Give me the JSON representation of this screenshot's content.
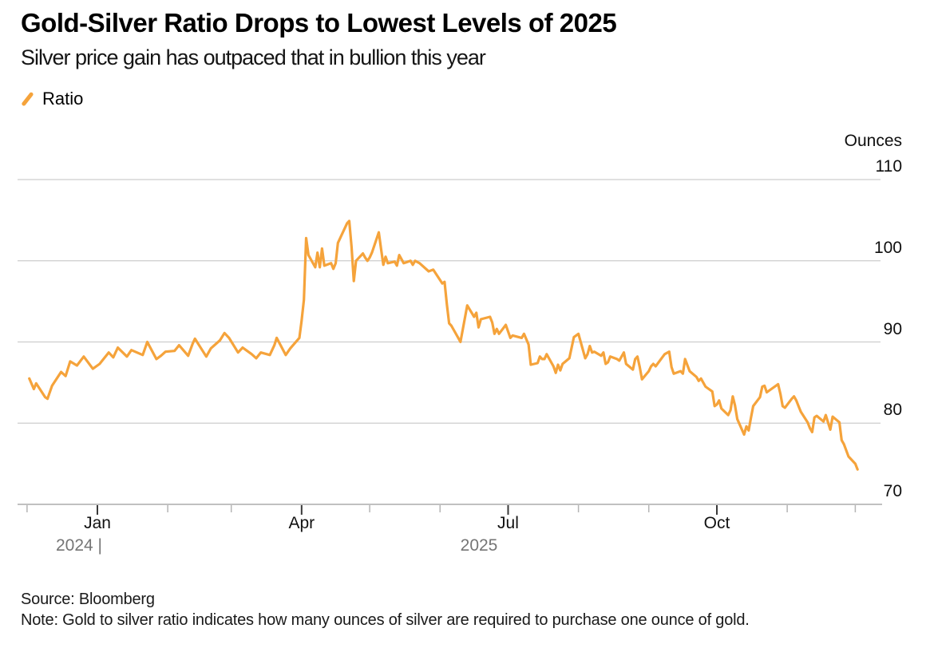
{
  "header": {
    "title": "Gold-Silver Ratio Drops to Lowest Levels of 2025",
    "subtitle": "Silver price gain has outpaced that in bullion this year"
  },
  "legend": {
    "items": [
      {
        "label": "Ratio",
        "marker": "slash-icon",
        "color": "#F5A33B"
      }
    ]
  },
  "footer": {
    "source": "Source: Bloomberg",
    "note": "Note: Gold to silver ratio indicates how many ounces of silver are required to purchase one ounce of gold."
  },
  "colors": {
    "line": "#F5A33B",
    "grid": "#CDCDCD",
    "axis": "#ABABAB",
    "major_tick": "#3A3A3A",
    "minor_tick": "#B5B5B5",
    "year_text": "#757575"
  },
  "chart_data": {
    "type": "line",
    "title": "Gold-Silver Ratio Drops to Lowest Levels of 2025",
    "subtitle": "Silver price gain has outpaced that in bullion this year",
    "unit_label": "Ounces",
    "ylabel": "Ounces",
    "xlabel": "",
    "ylim": [
      70,
      110
    ],
    "y_ticks": [
      110,
      100,
      90,
      80,
      70
    ],
    "grid": "horizontal",
    "legend_position": "top-left",
    "x_major_ticks": [
      {
        "label": "Jan",
        "date": "2025-01-01"
      },
      {
        "label": "Apr",
        "date": "2025-04-01"
      },
      {
        "label": "Jul",
        "date": "2025-07-01"
      },
      {
        "label": "Oct",
        "date": "2025-10-01"
      }
    ],
    "x_minor_tick_dates": [
      "2024-12-01",
      "2025-02-01",
      "2025-03-01",
      "2025-05-01",
      "2025-06-01",
      "2025-08-01",
      "2025-09-01",
      "2025-11-01",
      "2025-12-01"
    ],
    "year_labels": [
      {
        "label": "2024 |"
      },
      {
        "label": "2025"
      }
    ],
    "series": [
      {
        "name": "Ratio",
        "color": "#F5A33B",
        "points": [
          [
            "2024-12-02",
            85.5
          ],
          [
            "2024-12-04",
            84.2
          ],
          [
            "2024-12-05",
            84.9
          ],
          [
            "2024-12-09",
            83.2
          ],
          [
            "2024-12-10",
            83.0
          ],
          [
            "2024-12-12",
            84.6
          ],
          [
            "2024-12-16",
            86.3
          ],
          [
            "2024-12-18",
            85.8
          ],
          [
            "2024-12-20",
            87.6
          ],
          [
            "2024-12-23",
            87.1
          ],
          [
            "2024-12-26",
            88.2
          ],
          [
            "2024-12-30",
            86.7
          ],
          [
            "2025-01-02",
            87.3
          ],
          [
            "2025-01-06",
            88.7
          ],
          [
            "2025-01-08",
            88.1
          ],
          [
            "2025-01-10",
            89.3
          ],
          [
            "2025-01-14",
            88.2
          ],
          [
            "2025-01-16",
            89.0
          ],
          [
            "2025-01-21",
            88.4
          ],
          [
            "2025-01-23",
            90.0
          ],
          [
            "2025-01-27",
            87.9
          ],
          [
            "2025-01-29",
            88.3
          ],
          [
            "2025-01-31",
            88.8
          ],
          [
            "2025-02-04",
            88.9
          ],
          [
            "2025-02-06",
            89.6
          ],
          [
            "2025-02-10",
            88.3
          ],
          [
            "2025-02-12",
            89.8
          ],
          [
            "2025-02-13",
            90.4
          ],
          [
            "2025-02-18",
            88.2
          ],
          [
            "2025-02-20",
            89.2
          ],
          [
            "2025-02-24",
            90.2
          ],
          [
            "2025-02-26",
            91.1
          ],
          [
            "2025-02-28",
            90.5
          ],
          [
            "2025-03-04",
            88.7
          ],
          [
            "2025-03-06",
            89.3
          ],
          [
            "2025-03-10",
            88.5
          ],
          [
            "2025-03-12",
            88.0
          ],
          [
            "2025-03-14",
            88.7
          ],
          [
            "2025-03-18",
            88.4
          ],
          [
            "2025-03-20",
            89.6
          ],
          [
            "2025-03-21",
            90.5
          ],
          [
            "2025-03-25",
            88.4
          ],
          [
            "2025-03-27",
            89.2
          ],
          [
            "2025-03-31",
            90.5
          ],
          [
            "2025-04-01",
            92.6
          ],
          [
            "2025-04-02",
            95.2
          ],
          [
            "2025-04-03",
            102.8
          ],
          [
            "2025-04-04",
            100.7
          ],
          [
            "2025-04-07",
            99.2
          ],
          [
            "2025-04-08",
            101.0
          ],
          [
            "2025-04-09",
            99.2
          ],
          [
            "2025-04-10",
            101.5
          ],
          [
            "2025-04-11",
            99.4
          ],
          [
            "2025-04-14",
            99.7
          ],
          [
            "2025-04-15",
            99.0
          ],
          [
            "2025-04-16",
            99.7
          ],
          [
            "2025-04-17",
            102.2
          ],
          [
            "2025-04-21",
            104.6
          ],
          [
            "2025-04-22",
            104.9
          ],
          [
            "2025-04-23",
            101.7
          ],
          [
            "2025-04-24",
            97.5
          ],
          [
            "2025-04-25",
            100.0
          ],
          [
            "2025-04-28",
            100.9
          ],
          [
            "2025-04-29",
            100.4
          ],
          [
            "2025-04-30",
            100.0
          ],
          [
            "2025-05-01",
            100.4
          ],
          [
            "2025-05-02",
            101.0
          ],
          [
            "2025-05-05",
            103.5
          ],
          [
            "2025-05-06",
            101.5
          ],
          [
            "2025-05-07",
            99.5
          ],
          [
            "2025-05-08",
            100.5
          ],
          [
            "2025-05-09",
            99.7
          ],
          [
            "2025-05-12",
            99.9
          ],
          [
            "2025-05-13",
            99.4
          ],
          [
            "2025-05-14",
            100.7
          ],
          [
            "2025-05-15",
            100.2
          ],
          [
            "2025-05-16",
            99.7
          ],
          [
            "2025-05-19",
            100.0
          ],
          [
            "2025-05-20",
            99.5
          ],
          [
            "2025-05-21",
            100.0
          ],
          [
            "2025-05-23",
            99.7
          ],
          [
            "2025-05-27",
            98.7
          ],
          [
            "2025-05-29",
            98.9
          ],
          [
            "2025-06-02",
            97.2
          ],
          [
            "2025-06-03",
            97.4
          ],
          [
            "2025-06-04",
            94.7
          ],
          [
            "2025-06-05",
            92.3
          ],
          [
            "2025-06-06",
            92.0
          ],
          [
            "2025-06-09",
            90.5
          ],
          [
            "2025-06-10",
            90.0
          ],
          [
            "2025-06-13",
            94.5
          ],
          [
            "2025-06-16",
            93.1
          ],
          [
            "2025-06-17",
            93.6
          ],
          [
            "2025-06-18",
            91.8
          ],
          [
            "2025-06-19",
            92.8
          ],
          [
            "2025-06-23",
            93.1
          ],
          [
            "2025-06-24",
            92.4
          ],
          [
            "2025-06-25",
            91.0
          ],
          [
            "2025-06-26",
            91.6
          ],
          [
            "2025-06-27",
            91.0
          ],
          [
            "2025-06-30",
            92.1
          ],
          [
            "2025-07-02",
            90.5
          ],
          [
            "2025-07-03",
            90.8
          ],
          [
            "2025-07-07",
            90.5
          ],
          [
            "2025-07-08",
            91.0
          ],
          [
            "2025-07-10",
            89.7
          ],
          [
            "2025-07-11",
            87.2
          ],
          [
            "2025-07-14",
            87.4
          ],
          [
            "2025-07-15",
            88.2
          ],
          [
            "2025-07-16",
            87.9
          ],
          [
            "2025-07-17",
            87.9
          ],
          [
            "2025-07-18",
            88.5
          ],
          [
            "2025-07-21",
            87.0
          ],
          [
            "2025-07-22",
            86.2
          ],
          [
            "2025-07-23",
            87.2
          ],
          [
            "2025-07-24",
            86.5
          ],
          [
            "2025-07-25",
            87.3
          ],
          [
            "2025-07-28",
            88.0
          ],
          [
            "2025-07-30",
            90.6
          ],
          [
            "2025-08-01",
            91.0
          ],
          [
            "2025-08-04",
            88.0
          ],
          [
            "2025-08-05",
            88.5
          ],
          [
            "2025-08-06",
            89.5
          ],
          [
            "2025-08-07",
            88.7
          ],
          [
            "2025-08-08",
            88.8
          ],
          [
            "2025-08-11",
            88.3
          ],
          [
            "2025-08-12",
            88.7
          ],
          [
            "2025-08-13",
            87.3
          ],
          [
            "2025-08-14",
            87.5
          ],
          [
            "2025-08-15",
            88.2
          ],
          [
            "2025-08-18",
            87.9
          ],
          [
            "2025-08-19",
            87.7
          ],
          [
            "2025-08-21",
            88.7
          ],
          [
            "2025-08-22",
            87.3
          ],
          [
            "2025-08-25",
            86.6
          ],
          [
            "2025-08-26",
            87.9
          ],
          [
            "2025-08-27",
            88.2
          ],
          [
            "2025-08-28",
            86.9
          ],
          [
            "2025-08-29",
            85.4
          ],
          [
            "2025-09-01",
            86.4
          ],
          [
            "2025-09-02",
            87.0
          ],
          [
            "2025-09-03",
            87.3
          ],
          [
            "2025-09-04",
            87.0
          ],
          [
            "2025-09-08",
            88.5
          ],
          [
            "2025-09-10",
            88.8
          ],
          [
            "2025-09-11",
            86.9
          ],
          [
            "2025-09-12",
            86.1
          ],
          [
            "2025-09-15",
            86.4
          ],
          [
            "2025-09-16",
            86.1
          ],
          [
            "2025-09-17",
            87.9
          ],
          [
            "2025-09-19",
            86.4
          ],
          [
            "2025-09-22",
            85.7
          ],
          [
            "2025-09-23",
            85.2
          ],
          [
            "2025-09-24",
            85.5
          ],
          [
            "2025-09-26",
            84.5
          ],
          [
            "2025-09-29",
            83.9
          ],
          [
            "2025-09-30",
            82.1
          ],
          [
            "2025-10-01",
            82.3
          ],
          [
            "2025-10-02",
            82.8
          ],
          [
            "2025-10-03",
            81.8
          ],
          [
            "2025-10-06",
            81.0
          ],
          [
            "2025-10-07",
            81.6
          ],
          [
            "2025-10-08",
            83.3
          ],
          [
            "2025-10-09",
            82.2
          ],
          [
            "2025-10-10",
            80.5
          ],
          [
            "2025-10-13",
            78.6
          ],
          [
            "2025-10-14",
            79.6
          ],
          [
            "2025-10-15",
            79.1
          ],
          [
            "2025-10-16",
            80.6
          ],
          [
            "2025-10-17",
            82.1
          ],
          [
            "2025-10-20",
            83.2
          ],
          [
            "2025-10-21",
            84.5
          ],
          [
            "2025-10-22",
            84.6
          ],
          [
            "2025-10-23",
            83.8
          ],
          [
            "2025-10-24",
            84.0
          ],
          [
            "2025-10-28",
            84.8
          ],
          [
            "2025-10-29",
            83.6
          ],
          [
            "2025-10-30",
            82.1
          ],
          [
            "2025-10-31",
            81.9
          ],
          [
            "2025-11-03",
            83.0
          ],
          [
            "2025-11-04",
            83.3
          ],
          [
            "2025-11-05",
            82.8
          ],
          [
            "2025-11-06",
            82.1
          ],
          [
            "2025-11-07",
            81.4
          ],
          [
            "2025-11-10",
            80.1
          ],
          [
            "2025-11-11",
            79.4
          ],
          [
            "2025-11-12",
            78.9
          ],
          [
            "2025-11-13",
            80.7
          ],
          [
            "2025-11-14",
            80.9
          ],
          [
            "2025-11-17",
            80.2
          ],
          [
            "2025-11-18",
            81.0
          ],
          [
            "2025-11-20",
            79.2
          ],
          [
            "2025-11-21",
            80.8
          ],
          [
            "2025-11-24",
            80.1
          ],
          [
            "2025-11-25",
            77.9
          ],
          [
            "2025-11-26",
            77.4
          ],
          [
            "2025-11-28",
            75.9
          ],
          [
            "2025-12-01",
            75.0
          ],
          [
            "2025-12-02",
            74.3
          ]
        ]
      }
    ]
  }
}
